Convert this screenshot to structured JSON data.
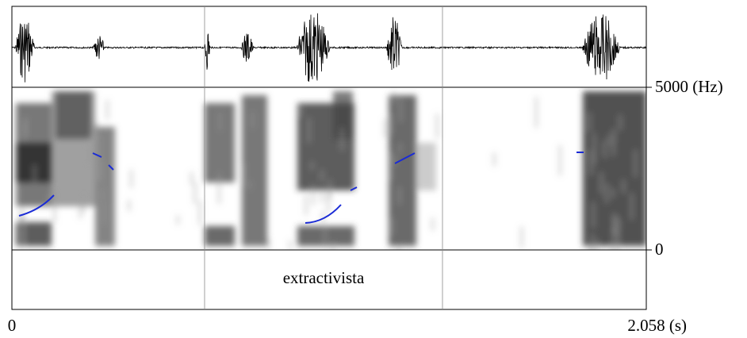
{
  "figure": {
    "frequency_axis": {
      "top_label": "5000 (Hz)",
      "bottom_label": "0"
    },
    "time_axis": {
      "start_label": "0",
      "end_label": "2.058 (s)"
    },
    "tier": {
      "label": "extractivista"
    }
  }
}
